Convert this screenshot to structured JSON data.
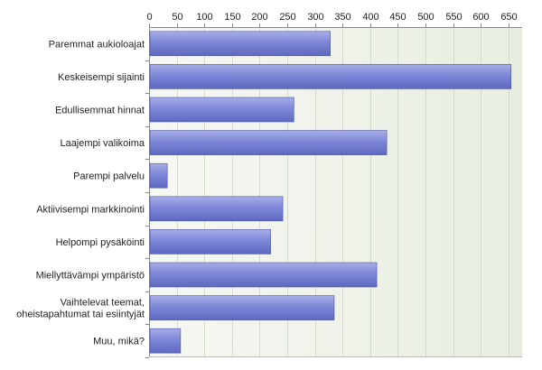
{
  "chart_data": {
    "type": "bar",
    "orientation": "horizontal",
    "categories": [
      "Paremmat aukioloajat",
      "Keskeisempi sijainti",
      "Edullisemmat hinnat",
      "Laajempi valikoima",
      "Parempi palvelu",
      "Aktiivisempi markkinointi",
      "Helpompi pysäköinti",
      "Miellyttävämpi ympäristö",
      "Vaihtelevat teemat, oheistapahtumat tai esiintyjät",
      "Muu, mikä?"
    ],
    "category_lines": [
      [
        "Paremmat aukioloajat"
      ],
      [
        "Keskeisempi sijainti"
      ],
      [
        "Edullisemmat hinnat"
      ],
      [
        "Laajempi valikoima"
      ],
      [
        "Parempi palvelu"
      ],
      [
        "Aktiivisempi markkinointi"
      ],
      [
        "Helpompi pysäköinti"
      ],
      [
        "Miellyttävämpi ympäristö"
      ],
      [
        "Vaihtelevat teemat,",
        "oheistapahtumat tai esiintyjät"
      ],
      [
        "Muu, mikä?"
      ]
    ],
    "values": [
      328,
      655,
      262,
      430,
      33,
      242,
      220,
      412,
      335,
      57
    ],
    "xlim": [
      0,
      675
    ],
    "xticks": [
      0,
      50,
      100,
      150,
      200,
      250,
      300,
      350,
      400,
      450,
      500,
      550,
      600,
      650
    ],
    "x_axis_position": "top",
    "grid": true,
    "legend": "none",
    "title": "",
    "xlabel": "",
    "ylabel": "",
    "colors": {
      "bar_fill": "#7b84d6",
      "bar_stroke": "#4a52a0",
      "plot_bg": "#edf1e8",
      "grid": "#d5dccd",
      "axis": "#888888"
    }
  }
}
